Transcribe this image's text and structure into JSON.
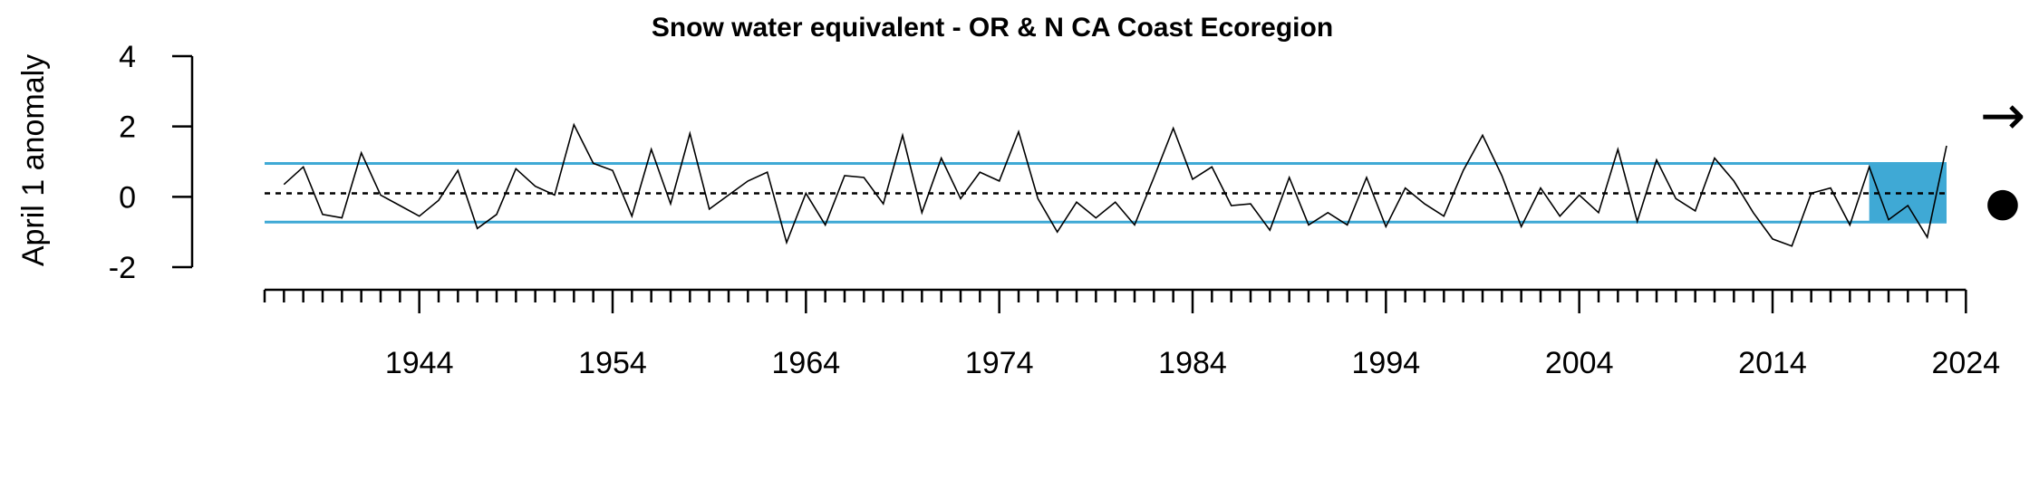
{
  "chart_data": {
    "type": "line",
    "title": "Snow water equivalent - OR & N CA Coast Ecoregion",
    "ylabel": "April 1 anomaly",
    "xlabel": "",
    "xlim": [
      1936,
      2023
    ],
    "ylim": [
      -2,
      4
    ],
    "y_ticks": [
      "-2",
      "0",
      "2",
      "4"
    ],
    "x_ticks": [
      "1944",
      "1954",
      "1964",
      "1974",
      "1984",
      "1994",
      "2004",
      "2014",
      "2024"
    ],
    "mean": 0.1,
    "band": {
      "upper": 0.95,
      "lower": -0.72,
      "color": "#3fa9d5"
    },
    "highlight_period": {
      "x_start": 2019,
      "x_end": 2023,
      "color": "#3fa9d5"
    },
    "trend_symbol": "→",
    "status_symbol": "●",
    "x": [
      1937,
      1938,
      1939,
      1940,
      1941,
      1942,
      1943,
      1944,
      1945,
      1946,
      1947,
      1948,
      1949,
      1950,
      1951,
      1952,
      1953,
      1954,
      1955,
      1956,
      1957,
      1958,
      1959,
      1960,
      1961,
      1962,
      1963,
      1964,
      1965,
      1966,
      1967,
      1968,
      1969,
      1970,
      1971,
      1972,
      1973,
      1974,
      1975,
      1976,
      1977,
      1978,
      1979,
      1980,
      1981,
      1982,
      1983,
      1984,
      1985,
      1986,
      1987,
      1988,
      1989,
      1990,
      1991,
      1992,
      1993,
      1994,
      1995,
      1996,
      1997,
      1998,
      1999,
      2000,
      2001,
      2002,
      2003,
      2004,
      2005,
      2006,
      2007,
      2008,
      2009,
      2010,
      2011,
      2012,
      2013,
      2014,
      2015,
      2016,
      2017,
      2018,
      2019,
      2020,
      2021,
      2022,
      2023
    ],
    "values": [
      0.35,
      0.85,
      -0.5,
      -0.6,
      1.25,
      0.05,
      -0.25,
      -0.55,
      -0.1,
      0.75,
      -0.9,
      -0.5,
      0.8,
      0.3,
      0.05,
      2.05,
      0.95,
      0.75,
      -0.55,
      1.35,
      -0.2,
      1.8,
      -0.35,
      0.05,
      0.45,
      0.7,
      -1.3,
      0.1,
      -0.8,
      0.6,
      0.55,
      -0.2,
      1.75,
      -0.45,
      1.1,
      -0.05,
      0.7,
      0.45,
      1.85,
      -0.05,
      -1.0,
      -0.15,
      -0.6,
      -0.15,
      -0.8,
      0.55,
      1.95,
      0.5,
      0.85,
      -0.25,
      -0.2,
      -0.95,
      0.55,
      -0.8,
      -0.45,
      -0.8,
      0.55,
      -0.85,
      0.25,
      -0.2,
      -0.55,
      0.75,
      1.75,
      0.6,
      -0.85,
      0.25,
      -0.55,
      0.05,
      -0.45,
      1.35,
      -0.7,
      1.05,
      -0.05,
      -0.4,
      1.1,
      0.45,
      -0.45,
      -1.2,
      -1.4,
      0.1,
      0.25,
      -0.8,
      0.85,
      -0.65,
      -0.25,
      -1.15,
      1.45
    ]
  }
}
